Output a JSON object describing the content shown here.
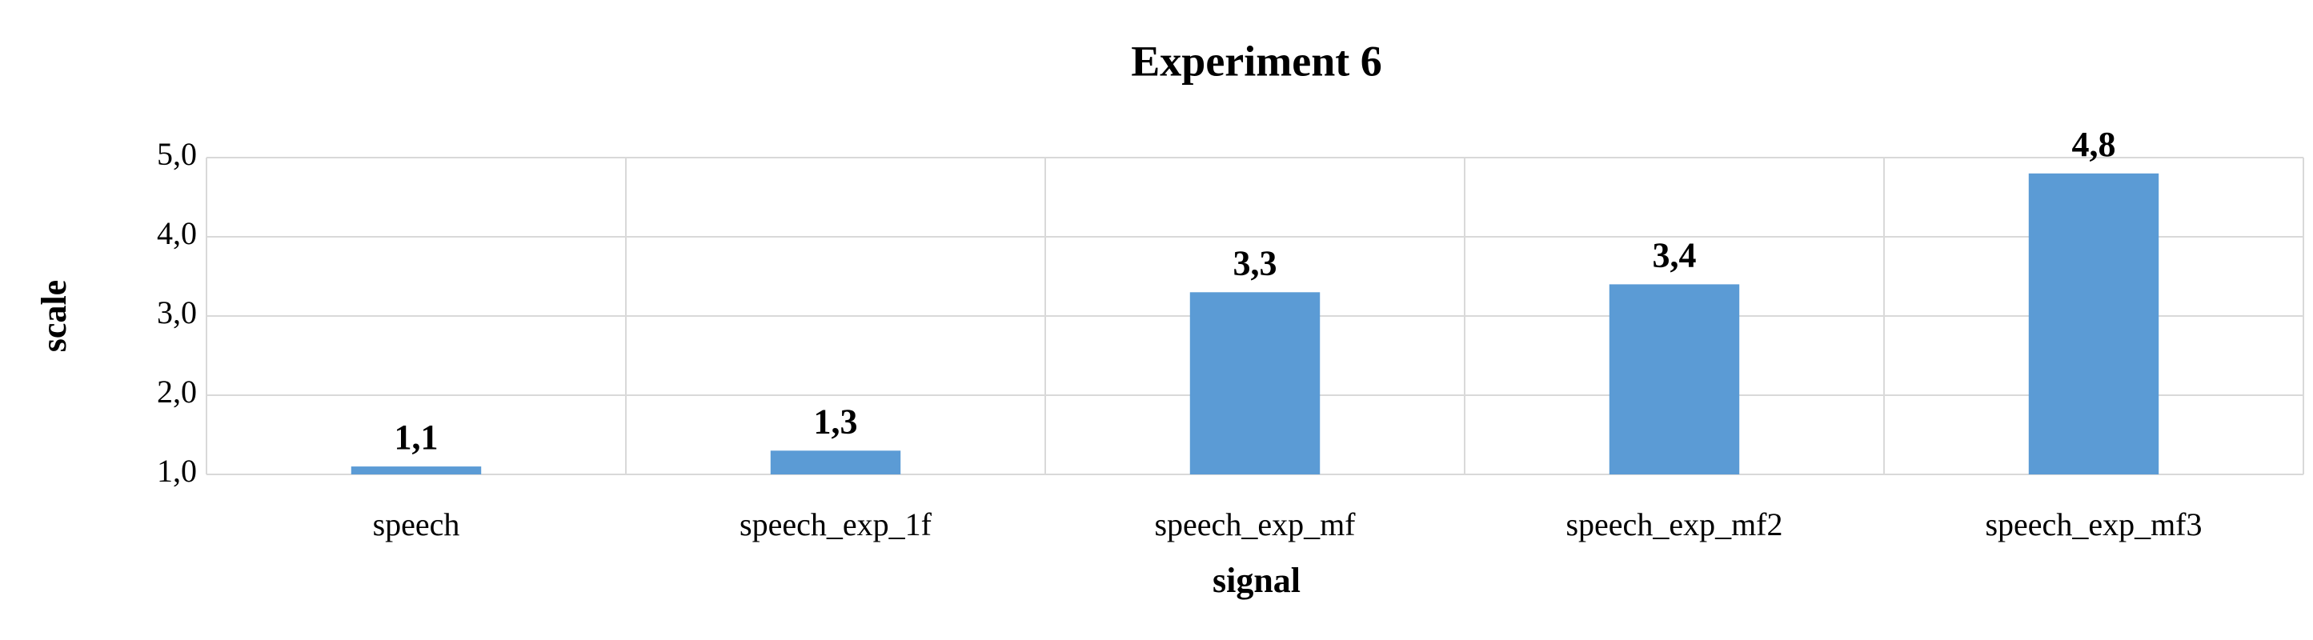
{
  "chart_data": {
    "type": "bar",
    "title": "Experiment 6",
    "x_label": "signal",
    "y_label": "scale",
    "categories": [
      "speech",
      "speech_exp_1f",
      "speech_exp_mf",
      "speech_exp_mf2",
      "speech_exp_mf3"
    ],
    "values": [
      1.1,
      1.3,
      3.3,
      3.4,
      4.8
    ],
    "value_labels": [
      "1,1",
      "1,3",
      "3,3",
      "3,4",
      "4,8"
    ],
    "color": "#5b9bd5",
    "ylim": [
      1,
      5
    ],
    "yticks": [
      {
        "value": 1,
        "label": "1,0"
      },
      {
        "value": 2,
        "label": "2,0"
      },
      {
        "value": 3,
        "label": "3,0"
      },
      {
        "value": 4,
        "label": "4,0"
      },
      {
        "value": 5,
        "label": "5,0"
      }
    ],
    "grid": true
  }
}
